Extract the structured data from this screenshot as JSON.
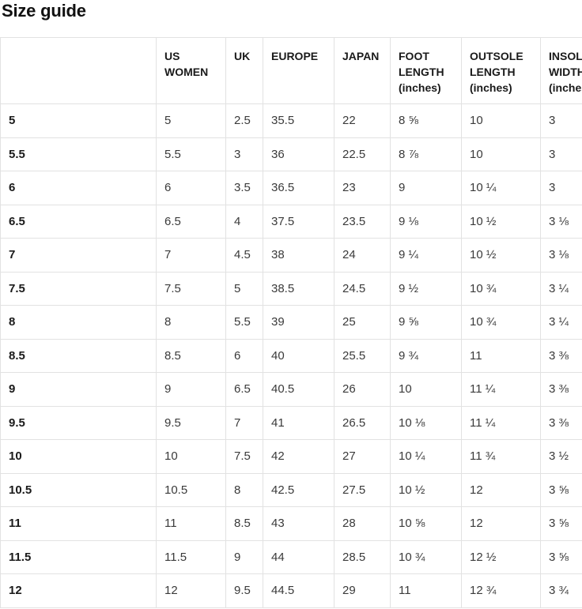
{
  "page": {
    "title": "Size guide"
  },
  "table": {
    "columns": [
      "",
      "US WOMEN",
      "UK",
      "EUROPE",
      "JAPAN",
      "FOOT LENGTH (inches)",
      "OUTSOLE LENGTH (inches)",
      "INSOLE WIDTH (inches)"
    ],
    "rows": [
      [
        "5",
        "5",
        "2.5",
        "35.5",
        "22",
        "8 ⅝",
        "10",
        "3"
      ],
      [
        "5.5",
        "5.5",
        "3",
        "36",
        "22.5",
        "8 ⅞",
        "10",
        "3"
      ],
      [
        "6",
        "6",
        "3.5",
        "36.5",
        "23",
        "9",
        "10 ¼",
        "3"
      ],
      [
        "6.5",
        "6.5",
        "4",
        "37.5",
        "23.5",
        "9 ⅛",
        "10 ½",
        "3 ⅛"
      ],
      [
        "7",
        "7",
        "4.5",
        "38",
        "24",
        "9 ¼",
        "10 ½",
        "3 ⅛"
      ],
      [
        "7.5",
        "7.5",
        "5",
        "38.5",
        "24.5",
        "9 ½",
        "10 ¾",
        "3 ¼"
      ],
      [
        "8",
        "8",
        "5.5",
        "39",
        "25",
        "9 ⅝",
        "10 ¾",
        "3 ¼"
      ],
      [
        "8.5",
        "8.5",
        "6",
        "40",
        "25.5",
        "9 ¾",
        "11",
        "3 ⅜"
      ],
      [
        "9",
        "9",
        "6.5",
        "40.5",
        "26",
        "10",
        "11 ¼",
        "3 ⅜"
      ],
      [
        "9.5",
        "9.5",
        "7",
        "41",
        "26.5",
        "10 ⅛",
        "11 ¼",
        "3 ⅜"
      ],
      [
        "10",
        "10",
        "7.5",
        "42",
        "27",
        "10 ¼",
        "11 ¾",
        "3 ½"
      ],
      [
        "10.5",
        "10.5",
        "8",
        "42.5",
        "27.5",
        "10 ½",
        "12",
        "3 ⅝"
      ],
      [
        "11",
        "11",
        "8.5",
        "43",
        "28",
        "10 ⅝",
        "12",
        "3 ⅝"
      ],
      [
        "11.5",
        "11.5",
        "9",
        "44",
        "28.5",
        "10 ¾",
        "12 ½",
        "3 ⅝"
      ],
      [
        "12",
        "12",
        "9.5",
        "44.5",
        "29",
        "11",
        "12 ¾",
        "3 ¾"
      ]
    ]
  },
  "colors": {
    "border": "#e2e2e2",
    "header_text": "#1a1a1a",
    "cell_text": "#3a3a3a"
  }
}
